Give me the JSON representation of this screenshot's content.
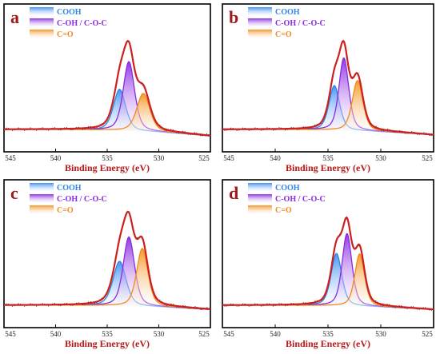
{
  "figure": {
    "xlabel": "Binding Energy (eV)",
    "legend_labels": [
      "COOH",
      "C-OH / C-O-C",
      "C=O"
    ],
    "colors": {
      "envelope": "#cc1f1f",
      "raw": "#222222",
      "cooh": "#2f86e6",
      "coh": "#8a2be2",
      "co": "#f08a1c",
      "axis": "#000000",
      "panel_letter": "#a01818",
      "xlabel": "#b51a1a"
    }
  },
  "chart_data": [
    {
      "type": "line",
      "panel_label": "a",
      "xlabel": "Binding Energy (eV)",
      "x_reversed": true,
      "xlim": [
        545,
        525
      ],
      "xticks": [
        545,
        540,
        535,
        530,
        525
      ],
      "series": [
        {
          "name": "COOH",
          "peak_center": 533.8,
          "height": 0.37,
          "fwhm": 1.4
        },
        {
          "name": "C-OH / C-O-C",
          "peak_center": 532.9,
          "height": 0.62,
          "fwhm": 1.3
        },
        {
          "name": "C=O",
          "peak_center": 531.5,
          "height": 0.34,
          "fwhm": 1.5
        }
      ],
      "baseline": {
        "left": 0.0,
        "right": -0.06
      }
    },
    {
      "type": "line",
      "panel_label": "b",
      "xlabel": "Binding Energy (eV)",
      "x_reversed": true,
      "xlim": [
        545,
        525
      ],
      "xticks": [
        545,
        540,
        535,
        530,
        525
      ],
      "series": [
        {
          "name": "COOH",
          "peak_center": 534.4,
          "height": 0.4,
          "fwhm": 1.2
        },
        {
          "name": "C-OH / C-O-C",
          "peak_center": 533.5,
          "height": 0.65,
          "fwhm": 1.1
        },
        {
          "name": "C=O",
          "peak_center": 532.2,
          "height": 0.45,
          "fwhm": 1.2
        }
      ],
      "baseline": {
        "left": 0.0,
        "right": -0.05
      }
    },
    {
      "type": "line",
      "panel_label": "c",
      "xlabel": "Binding Energy (eV)",
      "x_reversed": true,
      "xlim": [
        545,
        525
      ],
      "xticks": [
        545,
        540,
        535,
        530,
        525
      ],
      "series": [
        {
          "name": "COOH",
          "peak_center": 533.8,
          "height": 0.4,
          "fwhm": 1.5
        },
        {
          "name": "C-OH / C-O-C",
          "peak_center": 532.9,
          "height": 0.62,
          "fwhm": 1.3
        },
        {
          "name": "C=O",
          "peak_center": 531.6,
          "height": 0.52,
          "fwhm": 1.3
        }
      ],
      "baseline": {
        "left": 0.0,
        "right": -0.04
      }
    },
    {
      "type": "line",
      "panel_label": "d",
      "xlabel": "Binding Energy (eV)",
      "x_reversed": true,
      "xlim": [
        545,
        525
      ],
      "xticks": [
        545,
        540,
        535,
        530,
        525
      ],
      "series": [
        {
          "name": "COOH",
          "peak_center": 534.2,
          "height": 0.47,
          "fwhm": 1.2
        },
        {
          "name": "C-OH / C-O-C",
          "peak_center": 533.2,
          "height": 0.65,
          "fwhm": 1.1
        },
        {
          "name": "C=O",
          "peak_center": 532.0,
          "height": 0.47,
          "fwhm": 1.1
        }
      ],
      "baseline": {
        "left": 0.0,
        "right": -0.04
      }
    }
  ]
}
